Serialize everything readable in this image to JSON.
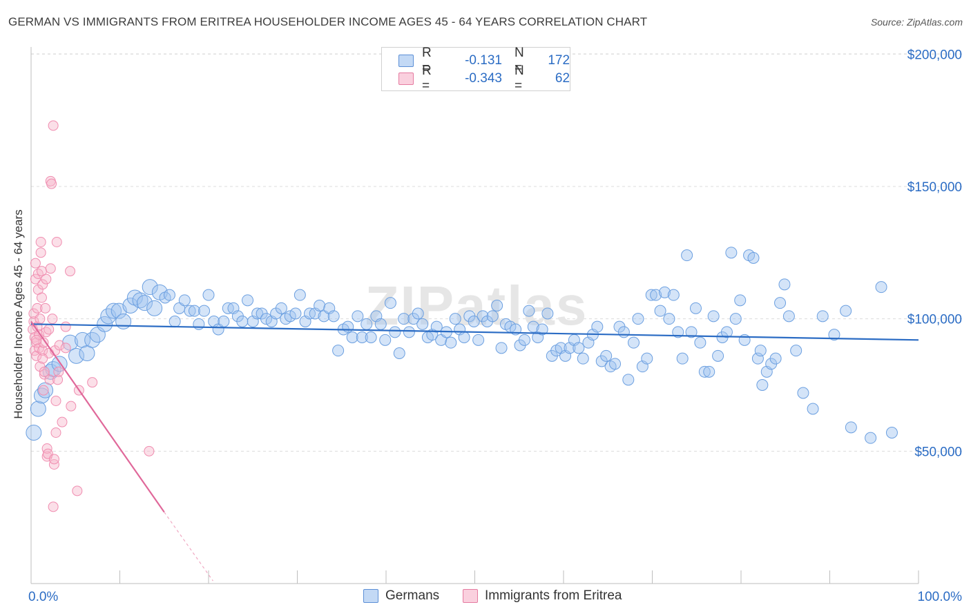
{
  "title": "GERMAN VS IMMIGRANTS FROM ERITREA HOUSEHOLDER INCOME AGES 45 - 64 YEARS CORRELATION CHART",
  "source": "Source: ZipAtlas.com",
  "watermark": "ZIPatlas",
  "legend": {
    "rows": [
      {
        "r_label": "R =",
        "r_value": "-0.131",
        "n_label": "N =",
        "n_value": "172",
        "color": "#a9c8f0",
        "stroke": "#5b8fd6"
      },
      {
        "r_label": "R =",
        "r_value": "-0.343",
        "n_label": "N =",
        "n_value": "62",
        "color": "#f7b8cc",
        "stroke": "#e57aa0"
      }
    ]
  },
  "bottom_legend": {
    "items": [
      {
        "label": "Germans",
        "color": "#a9c8f0",
        "stroke": "#5b8fd6"
      },
      {
        "label": "Immigrants from Eritrea",
        "color": "#f7b8cc",
        "stroke": "#e57aa0"
      }
    ]
  },
  "chart_data": {
    "type": "scatter",
    "title": "GERMAN VS IMMIGRANTS FROM ERITREA HOUSEHOLDER INCOME AGES 45 - 64 YEARS CORRELATION CHART",
    "xlabel": "",
    "ylabel": "Householder Income Ages 45 - 64 years",
    "xlim": [
      0,
      100
    ],
    "ylim": [
      0,
      210000
    ],
    "x_tick_labels": [
      "0.0%",
      "100.0%"
    ],
    "y_ticks": [
      50000,
      100000,
      150000,
      200000
    ],
    "y_tick_labels": [
      "$50,000",
      "$100,000",
      "$150,000",
      "$200,000"
    ],
    "grid": true,
    "series": [
      {
        "name": "Germans",
        "color": "#6b9fe0",
        "trend": {
          "x": [
            0,
            100
          ],
          "y": [
            98000,
            92000
          ]
        },
        "points": [
          [
            0.3,
            57000
          ],
          [
            0.8,
            66000
          ],
          [
            1.2,
            71000
          ],
          [
            1.6,
            73000
          ],
          [
            2.2,
            80000
          ],
          [
            2.5,
            81000
          ],
          [
            3.2,
            83000
          ],
          [
            4.4,
            91000
          ],
          [
            5.1,
            86000
          ],
          [
            5.8,
            92000
          ],
          [
            6.3,
            87000
          ],
          [
            6.9,
            92000
          ],
          [
            7.5,
            94000
          ],
          [
            8.3,
            98000
          ],
          [
            8.7,
            101000
          ],
          [
            9.3,
            103000
          ],
          [
            9.9,
            103000
          ],
          [
            10.4,
            99000
          ],
          [
            11.2,
            105000
          ],
          [
            11.7,
            108000
          ],
          [
            12.3,
            107000
          ],
          [
            12.8,
            106000
          ],
          [
            13.4,
            112000
          ],
          [
            13.9,
            104000
          ],
          [
            14.5,
            110000
          ],
          [
            15.1,
            108000
          ],
          [
            15.6,
            109000
          ],
          [
            16.2,
            99000
          ],
          [
            16.7,
            104000
          ],
          [
            17.3,
            107000
          ],
          [
            17.9,
            103000
          ],
          [
            18.4,
            103000
          ],
          [
            18.9,
            98000
          ],
          [
            19.5,
            103000
          ],
          [
            20.0,
            109000
          ],
          [
            20.6,
            99000
          ],
          [
            21.1,
            96000
          ],
          [
            21.7,
            99000
          ],
          [
            22.2,
            104000
          ],
          [
            22.8,
            104000
          ],
          [
            23.3,
            101000
          ],
          [
            23.8,
            99000
          ],
          [
            24.4,
            107000
          ],
          [
            25.0,
            99000
          ],
          [
            25.5,
            102000
          ],
          [
            26.0,
            102000
          ],
          [
            26.5,
            100000
          ],
          [
            27.1,
            99000
          ],
          [
            27.6,
            102000
          ],
          [
            28.2,
            104000
          ],
          [
            28.7,
            100000
          ],
          [
            29.2,
            101000
          ],
          [
            29.8,
            102000
          ],
          [
            30.3,
            109000
          ],
          [
            30.9,
            99000
          ],
          [
            31.4,
            102000
          ],
          [
            32.0,
            102000
          ],
          [
            32.5,
            105000
          ],
          [
            33.0,
            101000
          ],
          [
            33.6,
            104000
          ],
          [
            34.1,
            101000
          ],
          [
            34.6,
            88000
          ],
          [
            35.2,
            96000
          ],
          [
            35.7,
            97000
          ],
          [
            36.2,
            93000
          ],
          [
            36.8,
            101000
          ],
          [
            37.3,
            93000
          ],
          [
            37.8,
            98000
          ],
          [
            38.3,
            93000
          ],
          [
            38.9,
            101000
          ],
          [
            39.4,
            98000
          ],
          [
            39.9,
            92000
          ],
          [
            40.5,
            106000
          ],
          [
            41.0,
            95000
          ],
          [
            41.5,
            87000
          ],
          [
            42.0,
            100000
          ],
          [
            42.6,
            95000
          ],
          [
            43.1,
            100000
          ],
          [
            43.6,
            102000
          ],
          [
            44.1,
            98000
          ],
          [
            44.7,
            93000
          ],
          [
            45.2,
            94000
          ],
          [
            45.7,
            97000
          ],
          [
            46.2,
            92000
          ],
          [
            46.8,
            95000
          ],
          [
            47.3,
            91000
          ],
          [
            47.8,
            100000
          ],
          [
            48.3,
            96000
          ],
          [
            48.8,
            93000
          ],
          [
            49.4,
            101000
          ],
          [
            49.9,
            99000
          ],
          [
            50.4,
            92000
          ],
          [
            50.9,
            101000
          ],
          [
            51.4,
            99000
          ],
          [
            52.0,
            101000
          ],
          [
            52.5,
            105000
          ],
          [
            53.0,
            89000
          ],
          [
            53.5,
            98000
          ],
          [
            54.0,
            97000
          ],
          [
            54.6,
            96000
          ],
          [
            55.1,
            90000
          ],
          [
            55.6,
            92000
          ],
          [
            56.1,
            103000
          ],
          [
            56.6,
            97000
          ],
          [
            57.1,
            93000
          ],
          [
            57.6,
            96000
          ],
          [
            58.2,
            102000
          ],
          [
            58.7,
            86000
          ],
          [
            59.2,
            88000
          ],
          [
            59.7,
            89000
          ],
          [
            60.2,
            86000
          ],
          [
            60.7,
            89000
          ],
          [
            61.2,
            92000
          ],
          [
            61.7,
            89000
          ],
          [
            62.2,
            85000
          ],
          [
            62.8,
            91000
          ],
          [
            63.3,
            94000
          ],
          [
            63.8,
            97000
          ],
          [
            64.3,
            84000
          ],
          [
            64.8,
            86000
          ],
          [
            65.3,
            82000
          ],
          [
            65.8,
            83000
          ],
          [
            66.3,
            97000
          ],
          [
            66.8,
            95000
          ],
          [
            67.3,
            77000
          ],
          [
            67.9,
            91000
          ],
          [
            68.4,
            100000
          ],
          [
            68.9,
            82000
          ],
          [
            69.4,
            85000
          ],
          [
            69.9,
            109000
          ],
          [
            70.4,
            109000
          ],
          [
            70.9,
            103000
          ],
          [
            71.4,
            110000
          ],
          [
            71.9,
            100000
          ],
          [
            72.4,
            109000
          ],
          [
            72.9,
            95000
          ],
          [
            73.4,
            85000
          ],
          [
            73.9,
            124000
          ],
          [
            74.4,
            95000
          ],
          [
            74.9,
            104000
          ],
          [
            75.4,
            91000
          ],
          [
            75.9,
            80000
          ],
          [
            76.4,
            80000
          ],
          [
            76.9,
            101000
          ],
          [
            77.4,
            86000
          ],
          [
            77.9,
            93000
          ],
          [
            78.4,
            95000
          ],
          [
            78.9,
            125000
          ],
          [
            79.4,
            100000
          ],
          [
            79.9,
            107000
          ],
          [
            80.4,
            92000
          ],
          [
            80.9,
            124000
          ],
          [
            81.4,
            123000
          ],
          [
            81.9,
            85000
          ],
          [
            82.4,
            75000
          ],
          [
            82.9,
            80000
          ],
          [
            83.4,
            83000
          ],
          [
            83.9,
            85000
          ],
          [
            84.4,
            106000
          ],
          [
            84.9,
            113000
          ],
          [
            85.4,
            101000
          ],
          [
            86.2,
            88000
          ],
          [
            87.0,
            72000
          ],
          [
            88.1,
            66000
          ],
          [
            89.2,
            101000
          ],
          [
            90.5,
            94000
          ],
          [
            91.8,
            103000
          ],
          [
            92.4,
            59000
          ],
          [
            94.6,
            55000
          ],
          [
            95.8,
            112000
          ],
          [
            97.0,
            57000
          ],
          [
            82.2,
            88000
          ]
        ]
      },
      {
        "name": "Immigrants from Eritrea",
        "color": "#f08db0",
        "trend": {
          "x": [
            0,
            15
          ],
          "y": [
            99000,
            27000
          ]
        },
        "trend_dashed": {
          "x": [
            15,
            20.5
          ],
          "y": [
            27000,
            1000
          ]
        },
        "points": [
          [
            0.2,
            96000
          ],
          [
            0.3,
            99000
          ],
          [
            0.3,
            102000
          ],
          [
            0.4,
            88000
          ],
          [
            0.4,
            93000
          ],
          [
            0.5,
            115000
          ],
          [
            0.5,
            121000
          ],
          [
            0.6,
            86000
          ],
          [
            0.6,
            91000
          ],
          [
            0.7,
            97000
          ],
          [
            0.7,
            104000
          ],
          [
            0.8,
            111000
          ],
          [
            0.8,
            117000
          ],
          [
            0.9,
            89000
          ],
          [
            0.9,
            94000
          ],
          [
            1.0,
            82000
          ],
          [
            1.0,
            100000
          ],
          [
            1.1,
            125000
          ],
          [
            1.1,
            129000
          ],
          [
            1.2,
            108000
          ],
          [
            1.2,
            118000
          ],
          [
            1.3,
            88000
          ],
          [
            1.3,
            113000
          ],
          [
            1.4,
            91000
          ],
          [
            1.4,
            73000
          ],
          [
            1.5,
            79000
          ],
          [
            1.5,
            80000
          ],
          [
            1.6,
            104000
          ],
          [
            1.7,
            115000
          ],
          [
            1.7,
            95000
          ],
          [
            1.8,
            48000
          ],
          [
            1.8,
            51000
          ],
          [
            1.9,
            49000
          ],
          [
            2.0,
            96000
          ],
          [
            2.0,
            87000
          ],
          [
            2.1,
            77000
          ],
          [
            2.2,
            119000
          ],
          [
            2.2,
            152000
          ],
          [
            2.3,
            151000
          ],
          [
            2.4,
            100000
          ],
          [
            2.5,
            173000
          ],
          [
            2.5,
            29000
          ],
          [
            2.6,
            45000
          ],
          [
            2.6,
            47000
          ],
          [
            2.7,
            88000
          ],
          [
            2.8,
            69000
          ],
          [
            2.8,
            57000
          ],
          [
            2.9,
            129000
          ],
          [
            3.0,
            77000
          ],
          [
            3.1,
            80000
          ],
          [
            3.2,
            90000
          ],
          [
            3.5,
            61000
          ],
          [
            3.9,
            97000
          ],
          [
            3.9,
            89000
          ],
          [
            4.4,
            118000
          ],
          [
            4.5,
            67000
          ],
          [
            5.2,
            35000
          ],
          [
            5.4,
            73000
          ],
          [
            6.9,
            76000
          ],
          [
            13.3,
            50000
          ],
          [
            1.3,
            85000
          ],
          [
            0.6,
            92000
          ]
        ]
      }
    ]
  }
}
